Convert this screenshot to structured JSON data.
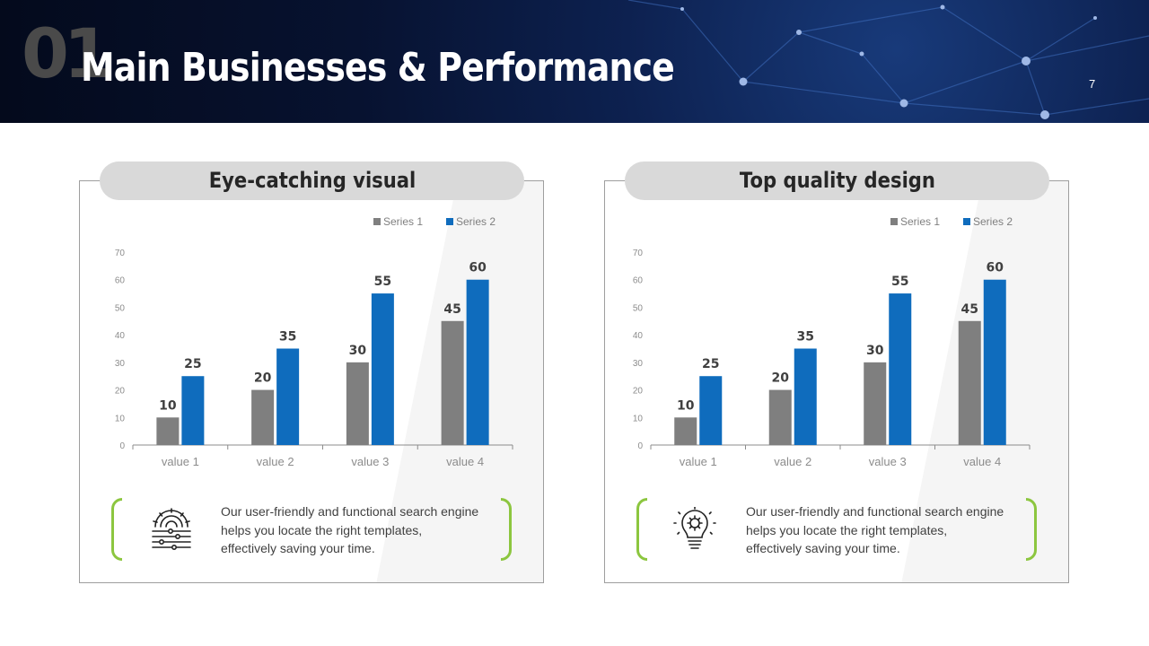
{
  "header": {
    "section_number": "01",
    "title": "Main Businesses & Performance",
    "page_number": "7"
  },
  "colors": {
    "series1": "#7f7f7f",
    "series2": "#0f6cbd",
    "accent_bracket": "#8cc63f",
    "banner": "#071230"
  },
  "panels": [
    {
      "title": "Eye-catching visual",
      "icon": "gear-circuit-icon",
      "description": [
        "Our user-friendly and functional search engine",
        "helps you locate the right templates,",
        "effectively  saving your time."
      ]
    },
    {
      "title": "Top quality design",
      "icon": "lightbulb-icon",
      "description": [
        "Our user-friendly and functional search engine",
        "helps you locate the right templates,",
        "effectively  saving your time."
      ]
    }
  ],
  "chart_data": [
    {
      "type": "bar",
      "categories": [
        "value 1",
        "value 2",
        "value 3",
        "value 4"
      ],
      "series": [
        {
          "name": "Series 1",
          "values": [
            10,
            20,
            30,
            45
          ]
        },
        {
          "name": "Series 2",
          "values": [
            25,
            35,
            55,
            60
          ]
        }
      ],
      "ylim": [
        0,
        70
      ],
      "yticks": [
        "0",
        "10",
        "20",
        "30",
        "40",
        "50",
        "60",
        "70"
      ],
      "grid": false,
      "legend": "top-right",
      "data_labels": true
    },
    {
      "type": "bar",
      "categories": [
        "value 1",
        "value 2",
        "value 3",
        "value 4"
      ],
      "series": [
        {
          "name": "Series 1",
          "values": [
            10,
            20,
            30,
            45
          ]
        },
        {
          "name": "Series 2",
          "values": [
            25,
            35,
            55,
            60
          ]
        }
      ],
      "ylim": [
        0,
        70
      ],
      "yticks": [
        "0",
        "10",
        "20",
        "30",
        "40",
        "50",
        "60",
        "70"
      ],
      "grid": false,
      "legend": "top-right",
      "data_labels": true
    }
  ]
}
